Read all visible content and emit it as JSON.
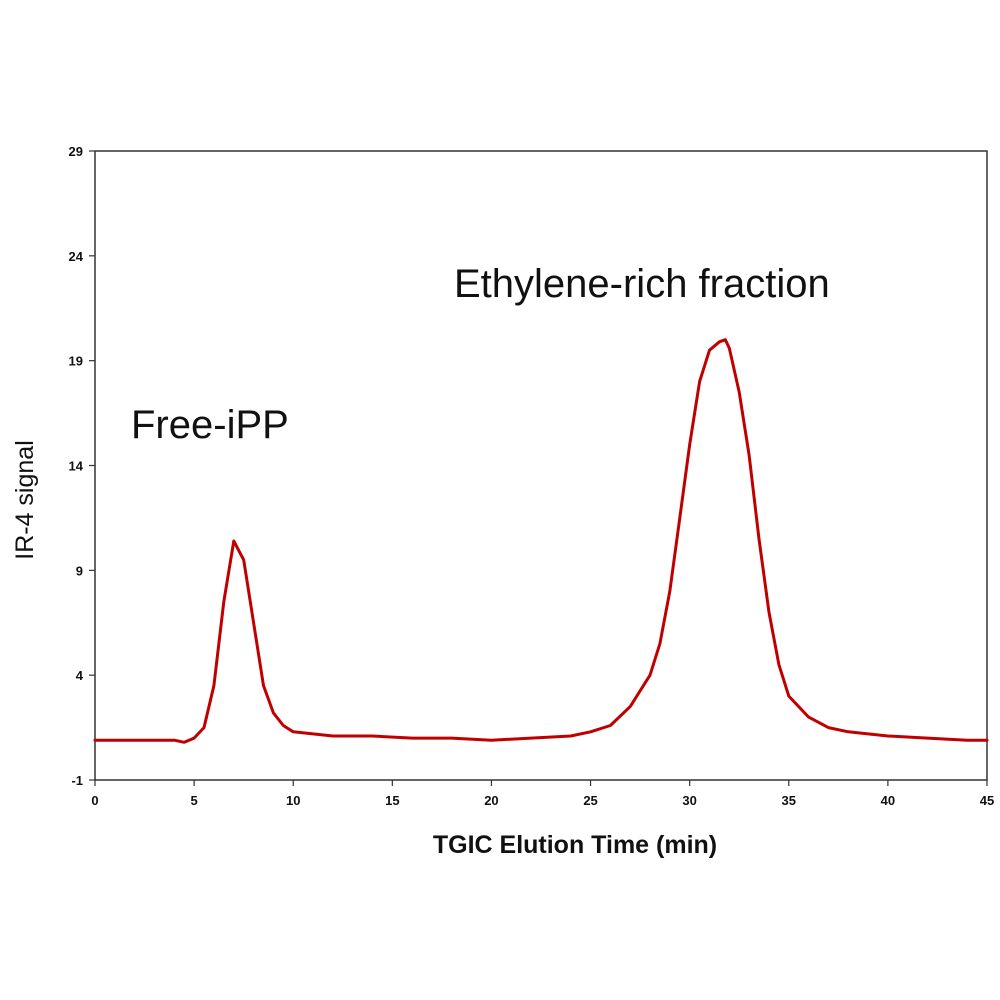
{
  "chart_data": {
    "type": "line",
    "title": "",
    "xlabel": "TGIC Elution Time (min)",
    "ylabel": "IR-4 signal",
    "xlim": [
      0,
      45
    ],
    "ylim": [
      -1,
      29
    ],
    "xticks": [
      "0",
      "5",
      "10",
      "15",
      "20",
      "25",
      "30",
      "35",
      "40",
      "45"
    ],
    "yticks": [
      "-1",
      "4",
      "9",
      "14",
      "19",
      "24",
      "29"
    ],
    "grid": false,
    "legend": "none",
    "annotations": [
      "Free-iPP",
      "Ethylene-rich fraction"
    ],
    "series_color": "#c00000",
    "series": [
      {
        "x": [
          0,
          2,
          4,
          4.5,
          5,
          5.5,
          6,
          6.5,
          7,
          7.5,
          8,
          8.5,
          9,
          9.5,
          10,
          11,
          12,
          14,
          16,
          18,
          20,
          22,
          24,
          25,
          26,
          27,
          28,
          28.5,
          29,
          29.5,
          30,
          30.5,
          31,
          31.5,
          31.8,
          32,
          32.5,
          33,
          33.5,
          34,
          34.5,
          35,
          36,
          37,
          38,
          40,
          42,
          44,
          45
        ],
        "y": [
          0.9,
          0.9,
          0.9,
          0.8,
          1.0,
          1.5,
          3.5,
          7.5,
          10.4,
          9.5,
          6.5,
          3.5,
          2.2,
          1.6,
          1.3,
          1.2,
          1.1,
          1.1,
          1.0,
          1.0,
          0.9,
          1.0,
          1.1,
          1.3,
          1.6,
          2.5,
          4.0,
          5.5,
          8.0,
          11.5,
          15.0,
          18.0,
          19.5,
          19.9,
          20.0,
          19.6,
          17.5,
          14.5,
          10.5,
          7.0,
          4.5,
          3.0,
          2.0,
          1.5,
          1.3,
          1.1,
          1.0,
          0.9,
          0.9
        ]
      }
    ]
  }
}
